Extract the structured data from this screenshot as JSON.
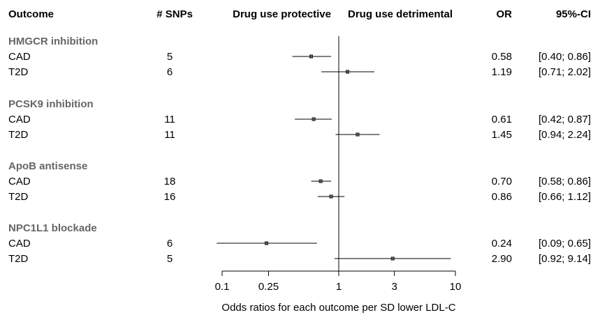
{
  "chart_data": {
    "type": "forest",
    "headers": {
      "outcome": "Outcome",
      "snps": "# SNPs",
      "protective": "Drug use protective",
      "detrimental": "Drug use detrimental",
      "or": "OR",
      "ci": "95%-CI"
    },
    "x_axis": {
      "scale": "log",
      "label": "Odds ratios for each outcome per SD lower LDL-C",
      "range": [
        0.1,
        10
      ],
      "ticks": [
        0.1,
        0.25,
        1,
        3,
        10
      ],
      "tick_labels": [
        "0.1",
        "0.25",
        "1",
        "3",
        "10"
      ],
      "reference_line": 1
    },
    "groups": [
      {
        "name": "HMGCR inhibition",
        "rows": [
          {
            "outcome": "CAD",
            "snps": "5",
            "or": 0.58,
            "lower": 0.4,
            "upper": 0.86,
            "or_text": "0.58",
            "ci_text": "[0.40; 0.86]"
          },
          {
            "outcome": "T2D",
            "snps": "6",
            "or": 1.19,
            "lower": 0.71,
            "upper": 2.02,
            "or_text": "1.19",
            "ci_text": "[0.71; 2.02]"
          }
        ]
      },
      {
        "name": "PCSK9 inhibition",
        "rows": [
          {
            "outcome": "CAD",
            "snps": "11",
            "or": 0.61,
            "lower": 0.42,
            "upper": 0.87,
            "or_text": "0.61",
            "ci_text": "[0.42; 0.87]"
          },
          {
            "outcome": "T2D",
            "snps": "11",
            "or": 1.45,
            "lower": 0.94,
            "upper": 2.24,
            "or_text": "1.45",
            "ci_text": "[0.94; 2.24]"
          }
        ]
      },
      {
        "name": "ApoB antisense",
        "rows": [
          {
            "outcome": "CAD",
            "snps": "18",
            "or": 0.7,
            "lower": 0.58,
            "upper": 0.86,
            "or_text": "0.70",
            "ci_text": "[0.58; 0.86]"
          },
          {
            "outcome": "T2D",
            "snps": "16",
            "or": 0.86,
            "lower": 0.66,
            "upper": 1.12,
            "or_text": "0.86",
            "ci_text": "[0.66; 1.12]"
          }
        ]
      },
      {
        "name": "NPC1L1 blockade",
        "rows": [
          {
            "outcome": "CAD",
            "snps": "6",
            "or": 0.24,
            "lower": 0.09,
            "upper": 0.65,
            "or_text": "0.24",
            "ci_text": "[0.09; 0.65]"
          },
          {
            "outcome": "T2D",
            "snps": "5",
            "or": 2.9,
            "lower": 0.92,
            "upper": 9.14,
            "or_text": "2.90",
            "ci_text": "[0.92; 9.14]"
          }
        ]
      }
    ]
  }
}
